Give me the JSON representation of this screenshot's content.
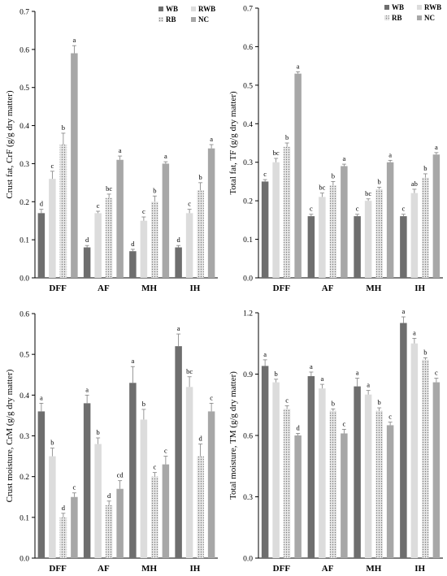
{
  "figure": {
    "legend_labels": [
      "WB",
      "RWB",
      "RB",
      "NC"
    ],
    "colors": {
      "WB": "#6e6e6e",
      "RWB": "#dcdcdc",
      "RB": "#c2c2c2",
      "NC": "#a7a7a7",
      "axis": "#000000",
      "error_bar": "#808080"
    }
  },
  "chart_data": [
    {
      "id": "crust-fat",
      "type": "bar",
      "ylabel": "Crust fat, CrF (g/g dry matter)",
      "xlabel": "",
      "categories": [
        "DFF",
        "AF",
        "MH",
        "IH"
      ],
      "ylim": [
        0,
        0.7
      ],
      "yticks": [
        "0.0",
        "0.1",
        "0.2",
        "0.3",
        "0.4",
        "0.5",
        "0.6",
        "0.7"
      ],
      "legend": "top-right",
      "grid": false,
      "series": [
        {
          "name": "WB",
          "values": [
            0.17,
            0.08,
            0.07,
            0.08
          ],
          "errors": [
            0.01,
            0.005,
            0.005,
            0.005
          ],
          "letters": [
            "d",
            "d",
            "d",
            "d"
          ]
        },
        {
          "name": "RWB",
          "values": [
            0.26,
            0.17,
            0.15,
            0.17
          ],
          "errors": [
            0.02,
            0.005,
            0.01,
            0.01
          ],
          "letters": [
            "c",
            "c",
            "c",
            "c"
          ]
        },
        {
          "name": "RB",
          "values": [
            0.35,
            0.21,
            0.2,
            0.23
          ],
          "errors": [
            0.03,
            0.01,
            0.015,
            0.02
          ],
          "letters": [
            "b",
            "bc",
            "b",
            "b"
          ]
        },
        {
          "name": "NC",
          "values": [
            0.59,
            0.31,
            0.3,
            0.34
          ],
          "errors": [
            0.02,
            0.01,
            0.005,
            0.01
          ],
          "letters": [
            "a",
            "a",
            "a",
            "a"
          ]
        }
      ]
    },
    {
      "id": "total-fat",
      "type": "bar",
      "ylabel": "Total fat, TF (g/g dry matter)",
      "xlabel": "",
      "categories": [
        "DFF",
        "AF",
        "MH",
        "IH"
      ],
      "ylim": [
        0,
        0.7
      ],
      "yticks": [
        "0.0",
        "0.1",
        "0.2",
        "0.3",
        "0.4",
        "0.5",
        "0.6",
        "0.7"
      ],
      "legend": "top-right",
      "grid": false,
      "series": [
        {
          "name": "WB",
          "values": [
            0.25,
            0.16,
            0.16,
            0.16
          ],
          "errors": [
            0.005,
            0.005,
            0.005,
            0.005
          ],
          "letters": [
            "c",
            "c",
            "c",
            "c"
          ]
        },
        {
          "name": "RWB",
          "values": [
            0.3,
            0.21,
            0.2,
            0.22
          ],
          "errors": [
            0.01,
            0.01,
            0.005,
            0.01
          ],
          "letters": [
            "bc",
            "bc",
            "bc",
            "ab"
          ]
        },
        {
          "name": "RB",
          "values": [
            0.34,
            0.24,
            0.23,
            0.26
          ],
          "errors": [
            0.01,
            0.01,
            0.005,
            0.01
          ],
          "letters": [
            "b",
            "b",
            "b",
            "b"
          ]
        },
        {
          "name": "NC",
          "values": [
            0.53,
            0.29,
            0.3,
            0.32
          ],
          "errors": [
            0.005,
            0.005,
            0.005,
            0.005
          ],
          "letters": [
            "a",
            "a",
            "a",
            "a"
          ]
        }
      ]
    },
    {
      "id": "crust-moisture",
      "type": "bar",
      "ylabel": "Crust moisture, CrM (g/g dry matter)",
      "xlabel": "",
      "categories": [
        "DFF",
        "AF",
        "MH",
        "IH"
      ],
      "ylim": [
        0,
        0.6
      ],
      "yticks": [
        "0.0",
        "0.1",
        "0.2",
        "0.3",
        "0.4",
        "0.5",
        "0.6"
      ],
      "legend": "none",
      "grid": false,
      "series": [
        {
          "name": "WB",
          "values": [
            0.36,
            0.38,
            0.43,
            0.52
          ],
          "errors": [
            0.02,
            0.02,
            0.04,
            0.03
          ],
          "letters": [
            "a",
            "a",
            "a",
            "a"
          ]
        },
        {
          "name": "RWB",
          "values": [
            0.25,
            0.28,
            0.34,
            0.42
          ],
          "errors": [
            0.02,
            0.015,
            0.025,
            0.025
          ],
          "letters": [
            "b",
            "b",
            "b",
            "bc"
          ]
        },
        {
          "name": "RB",
          "values": [
            0.1,
            0.13,
            0.2,
            0.25
          ],
          "errors": [
            0.01,
            0.01,
            0.01,
            0.03
          ],
          "letters": [
            "d",
            "d",
            "c",
            "d"
          ]
        },
        {
          "name": "NC",
          "values": [
            0.15,
            0.17,
            0.23,
            0.36
          ],
          "errors": [
            0.01,
            0.02,
            0.02,
            0.02
          ],
          "letters": [
            "c",
            "cd",
            "c",
            "c"
          ]
        }
      ]
    },
    {
      "id": "total-moisture",
      "type": "bar",
      "ylabel": "Total moisture, TM (g/g dry matter)",
      "xlabel": "",
      "categories": [
        "DFF",
        "AF",
        "MH",
        "IH"
      ],
      "ylim": [
        0,
        1.2
      ],
      "yticks": [
        "0.0",
        "0.3",
        "0.6",
        "0.9",
        "1.2"
      ],
      "legend": "none",
      "grid": false,
      "series": [
        {
          "name": "WB",
          "values": [
            0.94,
            0.89,
            0.84,
            1.15
          ],
          "errors": [
            0.03,
            0.02,
            0.04,
            0.03
          ],
          "letters": [
            "a",
            "a",
            "a",
            "a"
          ]
        },
        {
          "name": "RWB",
          "values": [
            0.86,
            0.83,
            0.8,
            1.05
          ],
          "errors": [
            0.015,
            0.02,
            0.02,
            0.025
          ],
          "letters": [
            "b",
            "a",
            "a",
            "a"
          ]
        },
        {
          "name": "RB",
          "values": [
            0.73,
            0.72,
            0.72,
            0.97
          ],
          "errors": [
            0.015,
            0.01,
            0.015,
            0.01
          ],
          "letters": [
            "c",
            "b",
            "b",
            "b"
          ]
        },
        {
          "name": "NC",
          "values": [
            0.6,
            0.61,
            0.65,
            0.86
          ],
          "errors": [
            0.01,
            0.02,
            0.015,
            0.02
          ],
          "letters": [
            "d",
            "c",
            "c",
            "c"
          ]
        }
      ]
    }
  ]
}
